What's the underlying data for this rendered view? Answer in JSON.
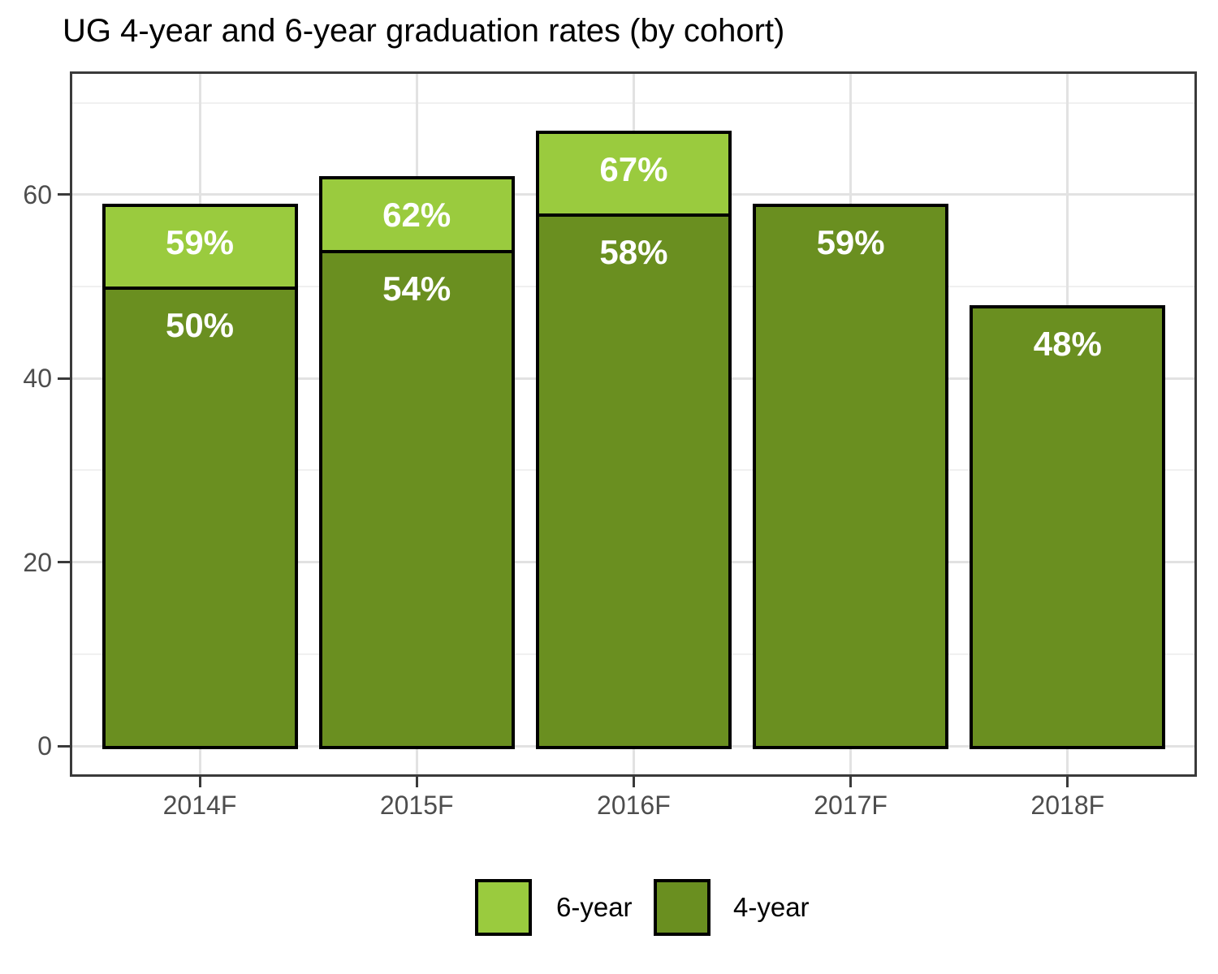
{
  "chart_data": {
    "type": "bar",
    "title": "UG 4-year and 6-year graduation rates (by cohort)",
    "categories": [
      "2014F",
      "2015F",
      "2016F",
      "2017F",
      "2018F"
    ],
    "series": [
      {
        "name": "6-year",
        "color": "#9ACB3E",
        "values": [
          59,
          62,
          67,
          null,
          null
        ]
      },
      {
        "name": "4-year",
        "color": "#6A8F20",
        "values": [
          50,
          54,
          58,
          59,
          48
        ]
      }
    ],
    "value_label_suffix": "%",
    "value_label_color": "#FFFFFF",
    "bar_border_color": "#000000",
    "xlabel": "",
    "ylabel": "",
    "ylim": [
      -3.4,
      73.4
    ],
    "yticks": [
      0,
      20,
      40,
      60
    ],
    "yminor": [
      10,
      30,
      50,
      70
    ],
    "grid": "horizontal major+minor, vertical major at categories",
    "legend_position": "bottom",
    "panel_border_color": "#3A3A3A",
    "axis_text_color": "#4D4D4D"
  }
}
